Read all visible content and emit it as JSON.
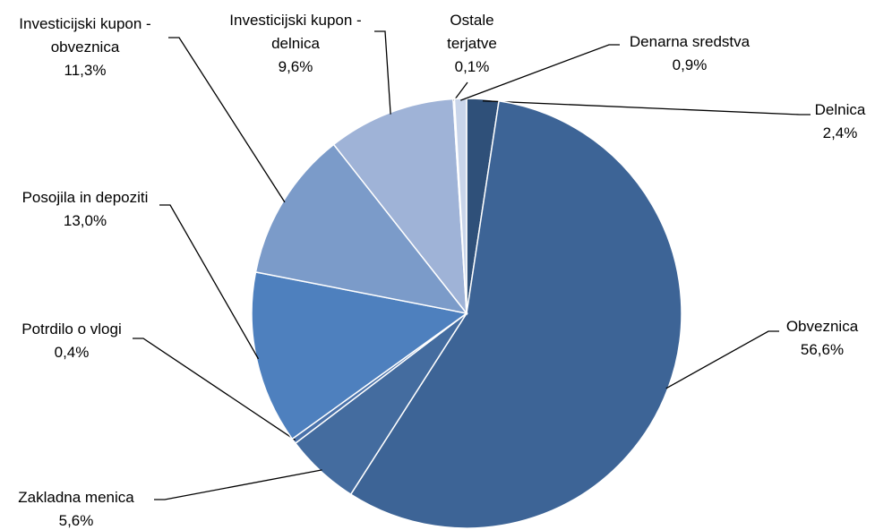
{
  "chart_data": {
    "type": "pie",
    "categories": [
      "Delnica",
      "Obveznica",
      "Zakladna menica",
      "Potrdilo o vlogi",
      "Posojila in depoziti",
      "Investicijski kupon - obveznica",
      "Investicijski kupon - delnica",
      "Ostale terjatve",
      "Denarna sredstva"
    ],
    "values": [
      2.4,
      56.6,
      5.6,
      0.4,
      13.0,
      11.3,
      9.6,
      0.1,
      0.9
    ],
    "value_labels": [
      "2,4%",
      "56,6%",
      "5,6%",
      "0,4%",
      "13,0%",
      "11,3%",
      "9,6%",
      "0,1%",
      "0,9%"
    ],
    "colors": [
      "#2f5079",
      "#3d6496",
      "#446c9f",
      "#4a72aa",
      "#4e80be",
      "#7b9bc9",
      "#9fb3d7",
      "#b7c6e3",
      "#c9d5ea"
    ]
  }
}
